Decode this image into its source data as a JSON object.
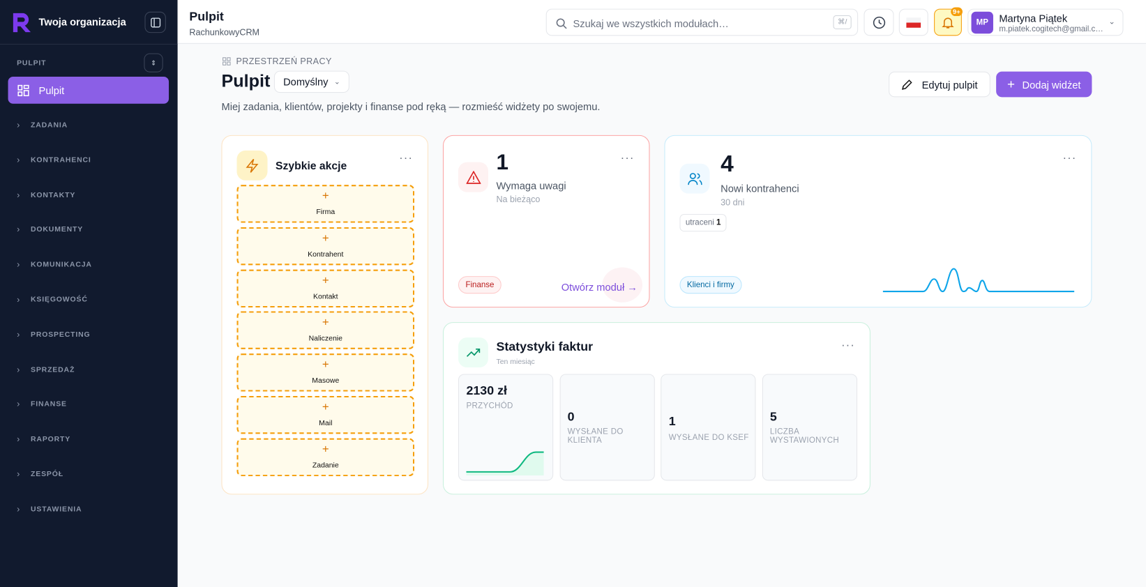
{
  "sidebar": {
    "org": "Twoja organizacja",
    "section": "PULPIT",
    "active": "Pulpit",
    "items": [
      "ZADANIA",
      "KONTRAHENCI",
      "KONTAKTY",
      "DOKUMENTY",
      "KOMUNIKACJA",
      "KSIĘGOWOŚĆ",
      "PROSPECTING",
      "SPRZEDAŻ",
      "FINANSE",
      "RAPORTY",
      "ZESPÓŁ",
      "USTAWIENIA"
    ]
  },
  "header": {
    "title": "Pulpit",
    "subtitle": "RachunkowyCRM",
    "search": "Szukaj we wszystkich modułach…",
    "shortcut": "⌘/",
    "badge": "9+",
    "user": {
      "initials": "MP",
      "name": "Martyna Piątek",
      "email": "m.piatek.cogitech@gmail.c…"
    }
  },
  "page": {
    "breadcrumb": "PRZESTRZEŃ PRACY",
    "title": "Pulpit",
    "view": "Domyślny",
    "description": "Miej zadania, klientów, projekty i finanse pod ręką — rozmieść widżety po swojemu.",
    "edit": "Edytuj pulpit",
    "add": "Dodaj widżet"
  },
  "widgets": {
    "quick": {
      "title": "Szybkie akcje",
      "actions": [
        "Firma",
        "Kontrahent",
        "Kontakt",
        "Naliczenie",
        "Masowe",
        "Mail",
        "Zadanie"
      ]
    },
    "attention": {
      "value": 1,
      "label": "Wymaga uwagi",
      "sub": "Na bieżąco",
      "tag": "Finanse",
      "link": "Otwórz moduł →"
    },
    "clients": {
      "value": 4,
      "label": "Nowi kontrahenci",
      "sub": "30 dni",
      "chip_label": "utraceni",
      "chip_value": 1,
      "tag": "Klienci i firmy"
    },
    "invoices": {
      "title": "Statystyki faktur",
      "sub": "Ten miesiąc",
      "tiles": [
        {
          "value": "2130 zł",
          "label": "PRZYCHÓD"
        },
        {
          "value": 0,
          "label": "WYSŁANE DO KLIENTA"
        },
        {
          "value": 1,
          "label": "WYSŁANE DO KSEF"
        },
        {
          "value": 5,
          "label": "LICZBA WYSTAWIONYCH"
        }
      ]
    }
  }
}
